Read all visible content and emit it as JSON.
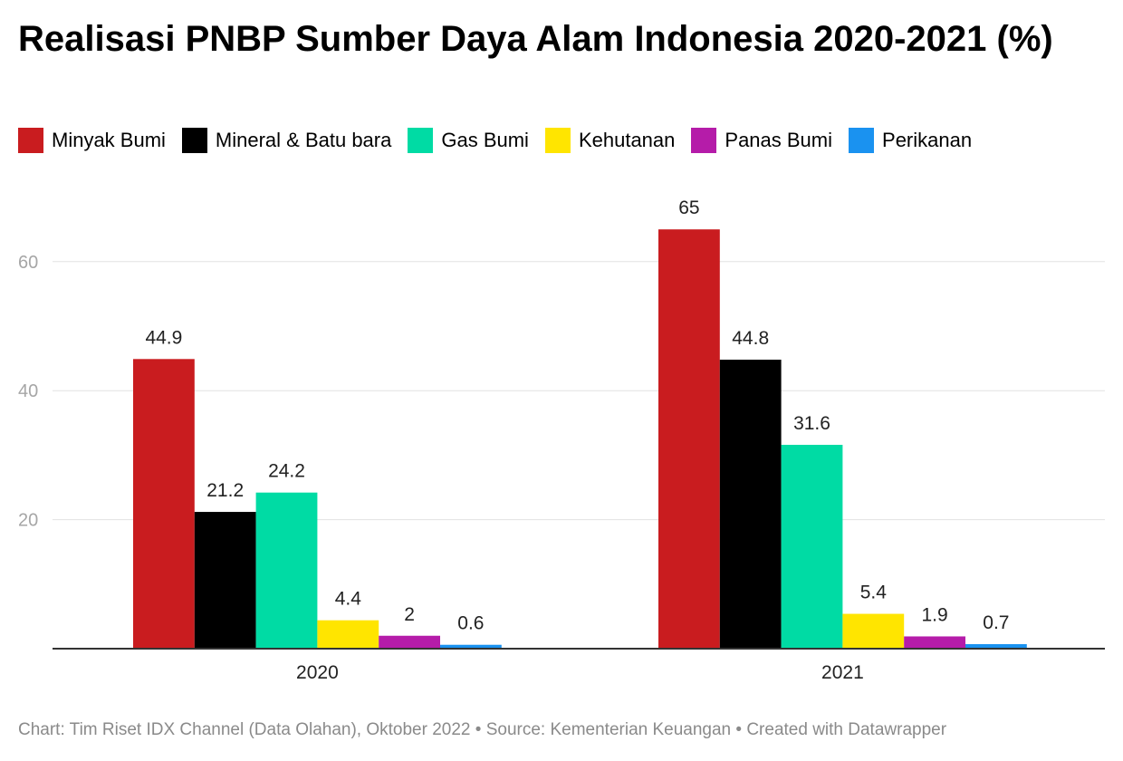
{
  "title": "Realisasi PNBP Sumber Daya Alam Indonesia 2020-2021 (%)",
  "footer": "Chart: Tim Riset IDX Channel (Data Olahan), Oktober 2022 • Source: Kementerian Keuangan • Created with Datawrapper",
  "chart_data": {
    "type": "bar",
    "categories": [
      "2020",
      "2021"
    ],
    "series": [
      {
        "name": "Minyak Bumi",
        "color": "#c91c1f",
        "values": [
          44.9,
          65
        ]
      },
      {
        "name": "Mineral & Batu bara",
        "color": "#000000",
        "values": [
          21.2,
          44.8
        ]
      },
      {
        "name": "Gas Bumi",
        "color": "#00dba4",
        "values": [
          24.2,
          31.6
        ]
      },
      {
        "name": "Kehutanan",
        "color": "#ffe500",
        "values": [
          4.4,
          5.4
        ]
      },
      {
        "name": "Panas Bumi",
        "color": "#b51ca9",
        "values": [
          2,
          1.9
        ]
      },
      {
        "name": "Perikanan",
        "color": "#1a92f0",
        "values": [
          0.6,
          0.7
        ]
      }
    ],
    "data_labels": [
      [
        "44.9",
        "21.2",
        "24.2",
        "4.4",
        "2",
        "0.6"
      ],
      [
        "65",
        "44.8",
        "31.6",
        "5.4",
        "1.9",
        "0.7"
      ]
    ],
    "yticks": [
      20,
      40,
      60
    ],
    "ylim": [
      0,
      70
    ],
    "grid": true,
    "legend_position": "top"
  }
}
